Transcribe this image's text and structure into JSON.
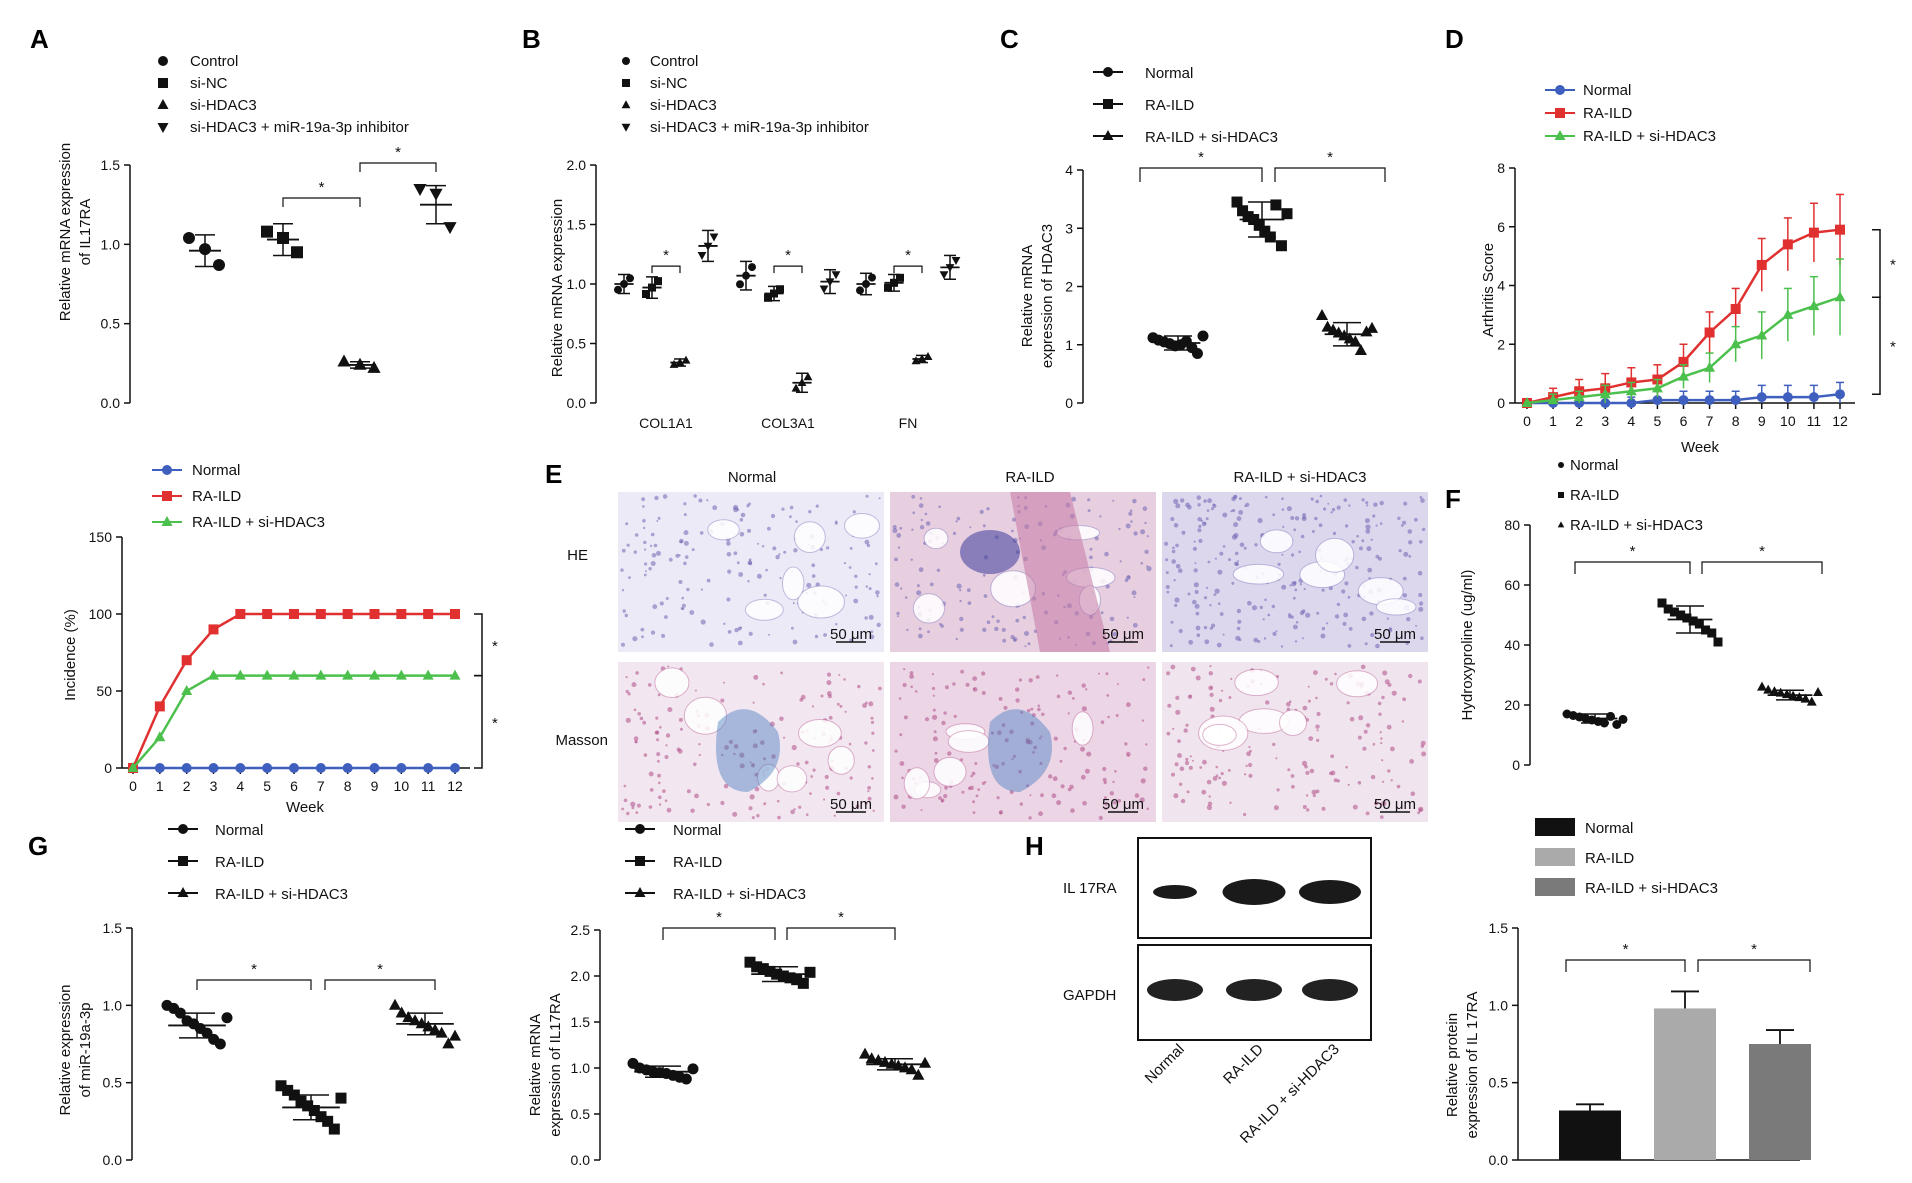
{
  "panels": {
    "A": {
      "letter": "A",
      "legend": [
        "Control",
        "si-NC",
        "si-HDAC3",
        "si-HDAC3 + miR-19a-3p inhibitor"
      ],
      "ylabel": [
        "Relative mRNA expression",
        "of IL17RA"
      ],
      "yticks": [
        "0.0",
        "0.5",
        "1.0",
        "1.5"
      ],
      "star": "*"
    },
    "B": {
      "letter": "B",
      "legend": [
        "Control",
        "si-NC",
        "si-HDAC3",
        "si-HDAC3 + miR-19a-3p inhibitor"
      ],
      "ylabel": "Relative mRNA expression",
      "yticks": [
        "0.0",
        "0.5",
        "1.0",
        "1.5",
        "2.0"
      ],
      "xticks": [
        "COL1A1",
        "COL3A1",
        "FN"
      ],
      "star": "*"
    },
    "C": {
      "letter": "C",
      "legend": [
        "Normal",
        "RA-ILD",
        "RA-ILD + si-HDAC3"
      ],
      "ylabel": [
        "Relative mRNA",
        "expression of HDAC3"
      ],
      "yticks": [
        "0",
        "1",
        "2",
        "3",
        "4"
      ],
      "star": "*"
    },
    "D": {
      "letter": "D",
      "legend": [
        "Normal",
        "RA-ILD",
        "RA-ILD + si-HDAC3"
      ],
      "ylabel": "Arthritis Score",
      "xlabel": "Week",
      "yticks": [
        "0",
        "2",
        "4",
        "6",
        "8"
      ],
      "xticks": [
        "0",
        "1",
        "2",
        "3",
        "4",
        "5",
        "6",
        "7",
        "8",
        "9",
        "10",
        "11",
        "12"
      ],
      "star": "*"
    },
    "Inc": {
      "legend": [
        "Normal",
        "RA-ILD",
        "RA-ILD + si-HDAC3"
      ],
      "ylabel": "Incidence (%)",
      "xlabel": "Week",
      "yticks": [
        "0",
        "50",
        "100",
        "150"
      ],
      "xticks": [
        "0",
        "1",
        "2",
        "3",
        "4",
        "5",
        "6",
        "7",
        "8",
        "9",
        "10",
        "11",
        "12"
      ],
      "star": "*"
    },
    "E": {
      "letter": "E",
      "columns": [
        "Normal",
        "RA-ILD",
        "RA-ILD + si-HDAC3"
      ],
      "rows": [
        "HE",
        "Masson"
      ],
      "scalebar": "50 μm"
    },
    "F": {
      "letter": "F",
      "legend": [
        "Normal",
        "RA-ILD",
        "RA-ILD + si-HDAC3"
      ],
      "ylabel": "Hydroxyproline (ug/ml)",
      "yticks": [
        "0",
        "20",
        "40",
        "60",
        "80"
      ],
      "star": "*"
    },
    "G": {
      "letter": "G",
      "legend": [
        "Normal",
        "RA-ILD",
        "RA-ILD + si-HDAC3"
      ],
      "ylabel": [
        "Relative expression",
        "of miR-19a-3p"
      ],
      "yticks": [
        "0.0",
        "0.5",
        "1.0",
        "1.5"
      ],
      "star": "*"
    },
    "G2": {
      "legend": [
        "Normal",
        "RA-ILD",
        "RA-ILD + si-HDAC3"
      ],
      "ylabel": [
        "Relative mRNA",
        "expression of IL17RA"
      ],
      "yticks": [
        "0.0",
        "0.5",
        "1.0",
        "1.5",
        "2.0",
        "2.5"
      ],
      "star": "*"
    },
    "H": {
      "letter": "H",
      "blot_labels": [
        "IL 17RA",
        "GAPDH"
      ],
      "lanes": [
        "Normal",
        "RA-ILD",
        "RA-ILD + si-HDAC3"
      ],
      "legend": [
        "Normal",
        "RA-ILD",
        "RA-ILD + si-HDAC3"
      ],
      "ylabel": [
        "Relative protein",
        "expression of IL 17RA"
      ],
      "yticks": [
        "0.0",
        "0.5",
        "1.0",
        "1.5"
      ],
      "star": "*"
    }
  },
  "colors": {
    "normal": "#3f5fbf",
    "raild": "#e03030",
    "si": "#4cc04c",
    "bar_normal": "#111111",
    "bar_raild": "#aaaaaa",
    "bar_si": "#7a7a7a"
  },
  "chart_data": [
    {
      "panel": "A",
      "type": "scatter",
      "ylim": [
        0,
        1.5
      ],
      "categories": [
        "Control",
        "si-NC",
        "si-HDAC3",
        "si-HDAC3 + miR-19a-3p inhibitor"
      ],
      "means": [
        0.96,
        1.03,
        0.24,
        1.25
      ],
      "sd": [
        0.1,
        0.1,
        0.02,
        0.12
      ],
      "points": [
        [
          1.04,
          0.97,
          0.87
        ],
        [
          1.08,
          1.04,
          0.95
        ],
        [
          0.26,
          0.24,
          0.22
        ],
        [
          1.35,
          1.32,
          1.11
        ]
      ]
    },
    {
      "panel": "B",
      "type": "scatter",
      "ylim": [
        0,
        2.0
      ],
      "categories": [
        "COL1A1",
        "COL3A1",
        "FN"
      ],
      "series": [
        {
          "name": "Control",
          "means": [
            1.0,
            1.07,
            1.0
          ],
          "sd": [
            0.08,
            0.12,
            0.09
          ]
        },
        {
          "name": "si-NC",
          "means": [
            0.97,
            0.92,
            1.01
          ],
          "sd": [
            0.09,
            0.06,
            0.07
          ]
        },
        {
          "name": "si-HDAC3",
          "means": [
            0.34,
            0.17,
            0.37
          ],
          "sd": [
            0.03,
            0.08,
            0.03
          ]
        },
        {
          "name": "si-HDAC3 + miR-19a-3p inhibitor",
          "means": [
            1.32,
            1.02,
            1.14
          ],
          "sd": [
            0.13,
            0.1,
            0.1
          ]
        }
      ]
    },
    {
      "panel": "C",
      "type": "scatter",
      "ylim": [
        0,
        4
      ],
      "categories": [
        "Normal",
        "RA-ILD",
        "RA-ILD + si-HDAC3"
      ],
      "means": [
        1.03,
        3.15,
        1.18
      ],
      "sd": [
        0.12,
        0.3,
        0.2
      ],
      "points": [
        [
          1.12,
          1.08,
          1.05,
          1.02,
          0.98,
          1.0,
          1.06,
          0.95,
          0.85,
          1.15
        ],
        [
          3.45,
          3.3,
          3.2,
          3.15,
          3.05,
          2.95,
          2.85,
          3.4,
          2.7,
          3.25
        ],
        [
          1.5,
          1.3,
          1.25,
          1.2,
          1.15,
          1.1,
          1.05,
          0.9,
          1.22,
          1.28
        ]
      ]
    },
    {
      "panel": "D",
      "type": "line",
      "ylim": [
        0,
        8
      ],
      "x": [
        0,
        1,
        2,
        3,
        4,
        5,
        6,
        7,
        8,
        9,
        10,
        11,
        12
      ],
      "series": [
        {
          "name": "Normal",
          "values": [
            0,
            0,
            0,
            0,
            0,
            0.1,
            0.1,
            0.1,
            0.1,
            0.2,
            0.2,
            0.2,
            0.3
          ],
          "sd": [
            0,
            0.1,
            0.1,
            0.2,
            0.2,
            0.3,
            0.3,
            0.3,
            0.3,
            0.4,
            0.4,
            0.4,
            0.4
          ]
        },
        {
          "name": "RA-ILD",
          "values": [
            0,
            0.2,
            0.4,
            0.5,
            0.7,
            0.8,
            1.4,
            2.4,
            3.2,
            4.7,
            5.4,
            5.8,
            5.9
          ],
          "sd": [
            0,
            0.3,
            0.4,
            0.5,
            0.5,
            0.5,
            0.6,
            0.7,
            0.7,
            0.9,
            0.9,
            1.0,
            1.2
          ]
        },
        {
          "name": "RA-ILD + si-HDAC3",
          "values": [
            0,
            0.1,
            0.2,
            0.3,
            0.4,
            0.5,
            0.9,
            1.2,
            2.0,
            2.3,
            3.0,
            3.3,
            3.6
          ],
          "sd": [
            0,
            0.2,
            0.2,
            0.3,
            0.3,
            0.3,
            0.4,
            0.5,
            0.6,
            0.8,
            0.9,
            1.0,
            1.3
          ]
        }
      ]
    },
    {
      "panel": "Incidence",
      "type": "line",
      "ylim": [
        0,
        150
      ],
      "x": [
        0,
        1,
        2,
        3,
        4,
        5,
        6,
        7,
        8,
        9,
        10,
        11,
        12
      ],
      "series": [
        {
          "name": "Normal",
          "values": [
            0,
            0,
            0,
            0,
            0,
            0,
            0,
            0,
            0,
            0,
            0,
            0,
            0
          ]
        },
        {
          "name": "RA-ILD",
          "values": [
            0,
            40,
            70,
            90,
            100,
            100,
            100,
            100,
            100,
            100,
            100,
            100,
            100
          ]
        },
        {
          "name": "RA-ILD + si-HDAC3",
          "values": [
            0,
            20,
            50,
            60,
            60,
            60,
            60,
            60,
            60,
            60,
            60,
            60,
            60
          ]
        }
      ]
    },
    {
      "panel": "F",
      "type": "scatter",
      "ylim": [
        0,
        80
      ],
      "categories": [
        "Normal",
        "RA-ILD",
        "RA-ILD + si-HDAC3"
      ],
      "means": [
        15.5,
        48.5,
        23.3
      ],
      "sd": [
        1.5,
        4.5,
        1.6
      ],
      "points": [
        [
          17,
          16.5,
          16,
          15.5,
          15,
          14.5,
          14,
          16.2,
          13.5,
          15.2
        ],
        [
          54,
          52,
          51,
          50,
          49,
          48,
          47,
          45,
          44,
          41
        ],
        [
          26,
          25,
          24.5,
          24,
          23.5,
          23,
          22.5,
          22,
          21,
          24.2
        ]
      ]
    },
    {
      "panel": "G",
      "type": "scatter",
      "ylim": [
        0,
        1.5
      ],
      "categories": [
        "Normal",
        "RA-ILD",
        "RA-ILD + si-HDAC3"
      ],
      "means": [
        0.87,
        0.34,
        0.88
      ],
      "sd": [
        0.08,
        0.08,
        0.07
      ],
      "points": [
        [
          1.0,
          0.98,
          0.95,
          0.9,
          0.88,
          0.85,
          0.82,
          0.78,
          0.75,
          0.92
        ],
        [
          0.48,
          0.45,
          0.42,
          0.38,
          0.35,
          0.32,
          0.28,
          0.25,
          0.2,
          0.4
        ],
        [
          1.0,
          0.95,
          0.92,
          0.9,
          0.88,
          0.86,
          0.84,
          0.82,
          0.75,
          0.8
        ]
      ]
    },
    {
      "panel": "G (right)",
      "type": "scatter",
      "ylim": [
        0,
        2.5
      ],
      "categories": [
        "Normal",
        "RA-ILD",
        "RA-ILD + si-HDAC3"
      ],
      "means": [
        0.96,
        2.02,
        1.04
      ],
      "sd": [
        0.06,
        0.08,
        0.06
      ],
      "points": [
        [
          1.05,
          1.0,
          0.98,
          0.96,
          0.95,
          0.94,
          0.92,
          0.9,
          0.88,
          0.99
        ],
        [
          2.15,
          2.1,
          2.08,
          2.05,
          2.02,
          2.0,
          1.98,
          1.96,
          1.92,
          2.04
        ],
        [
          1.15,
          1.1,
          1.08,
          1.06,
          1.04,
          1.02,
          1.0,
          0.98,
          0.92,
          1.05
        ]
      ]
    },
    {
      "panel": "H",
      "type": "bar",
      "ylim": [
        0,
        1.5
      ],
      "categories": [
        "Normal",
        "RA-ILD",
        "RA-ILD + si-HDAC3"
      ],
      "values": [
        0.32,
        0.98,
        0.75
      ],
      "sd": [
        0.04,
        0.11,
        0.09
      ]
    }
  ]
}
